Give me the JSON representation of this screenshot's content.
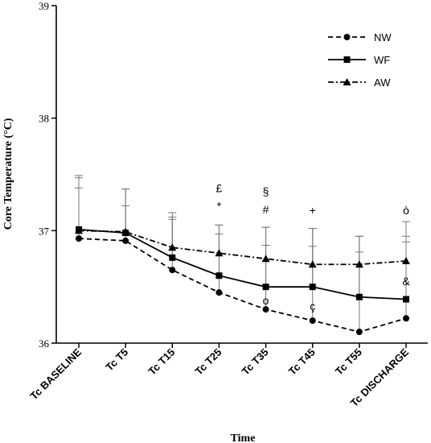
{
  "chart_data": {
    "type": "line",
    "title": "",
    "xlabel": "Time",
    "ylabel": "Core Temperature (°C)",
    "ylim": [
      36,
      39
    ],
    "yticks": [
      36,
      37,
      38,
      39
    ],
    "categories": [
      "Tc BASELINE",
      "Tc T5",
      "Tc T15",
      "Tc T25",
      "Tc T35",
      "Tc T45",
      "Tc T55",
      "Tc DISCHARGE"
    ],
    "legend_position": "top-right",
    "grid": false,
    "series": [
      {
        "name": "NW",
        "line_style": "dashed",
        "marker": "circle",
        "values": [
          36.93,
          36.91,
          36.65,
          36.45,
          36.3,
          36.2,
          36.1,
          36.22
        ],
        "error_upper": [
          37.38,
          37.22,
          37.1,
          36.97,
          36.87,
          36.86,
          36.81,
          36.95
        ]
      },
      {
        "name": "WF",
        "line_style": "solid",
        "marker": "square",
        "values": [
          37.01,
          36.98,
          36.76,
          36.6,
          36.5,
          36.5,
          36.41,
          36.39
        ],
        "error_upper": [
          37.47,
          37.37,
          37.12,
          37.05,
          37.03,
          37.02,
          36.95,
          36.9
        ]
      },
      {
        "name": "AW",
        "line_style": "dash-dot",
        "marker": "triangle",
        "values": [
          37.0,
          36.99,
          36.85,
          36.8,
          36.75,
          36.7,
          36.7,
          36.73
        ],
        "error_upper": [
          37.49,
          37.37,
          37.16,
          37.05,
          37.03,
          37.02,
          36.95,
          37.08
        ]
      }
    ],
    "annotations": [
      {
        "text": "£",
        "category": 3,
        "y": 37.38
      },
      {
        "text": "*",
        "category": 3,
        "y": 37.22
      },
      {
        "text": "§",
        "category": 4,
        "y": 37.35
      },
      {
        "text": "#",
        "category": 4,
        "y": 37.19
      },
      {
        "text": "+",
        "category": 5,
        "y": 37.18
      },
      {
        "text": "ò",
        "category": 7,
        "y": 37.18
      },
      {
        "text": "o",
        "category": 4,
        "y": 36.38
      },
      {
        "text": "ç",
        "category": 5,
        "y": 36.33
      },
      {
        "text": "&",
        "category": 7,
        "y": 36.55
      }
    ]
  }
}
